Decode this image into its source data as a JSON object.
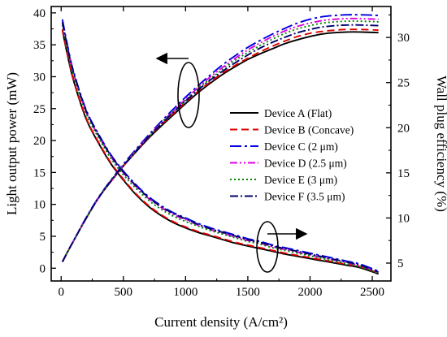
{
  "chart_data": {
    "type": "line",
    "xlabel": "Current density (A/cm²)",
    "ylabel_left": "Light output power (mW)",
    "ylabel_right": "Wall plug efficiency (%)",
    "xlim": [
      -80,
      2650
    ],
    "ylim_left": [
      -2,
      41
    ],
    "ylim_right": [
      3.02,
      33.43
    ],
    "xticks": [
      0,
      500,
      1000,
      1500,
      2000,
      2500
    ],
    "yticks_left": [
      0,
      5,
      10,
      15,
      20,
      25,
      30,
      35,
      40
    ],
    "yticks_right": [
      5,
      10,
      15,
      20,
      25,
      30
    ],
    "grid": false,
    "legend_position": "center-right",
    "x": [
      10,
      50,
      100,
      200,
      300,
      400,
      500,
      600,
      700,
      800,
      900,
      1000,
      1100,
      1200,
      1300,
      1400,
      1500,
      1600,
      1700,
      1800,
      1900,
      2000,
      2100,
      2200,
      2300,
      2400,
      2550
    ],
    "series": [
      {
        "name": "Device A (Flat)",
        "color": "#000000",
        "dash": "",
        "power": [
          1.0,
          2.5,
          4.3,
          7.8,
          11.0,
          13.6,
          16.0,
          18.2,
          20.3,
          22.2,
          24.0,
          25.8,
          27.5,
          29.0,
          30.4,
          31.6,
          32.7,
          33.6,
          34.4,
          35.2,
          35.8,
          36.3,
          36.7,
          36.9,
          37.0,
          37.0,
          36.9
        ],
        "efficiency": [
          30.8,
          28.1,
          25.2,
          21.0,
          18.3,
          16.0,
          14.2,
          12.6,
          11.3,
          10.3,
          9.5,
          8.9,
          8.4,
          8.0,
          7.6,
          7.2,
          6.9,
          6.6,
          6.3,
          6.0,
          5.75,
          5.5,
          5.25,
          5.0,
          4.75,
          4.5,
          3.8
        ]
      },
      {
        "name": "Device B (Concave)",
        "color": "#e00000",
        "dash": "9,5",
        "power": [
          1.0,
          2.5,
          4.3,
          7.8,
          11.0,
          13.6,
          16.0,
          18.3,
          20.4,
          22.4,
          24.2,
          26.0,
          27.7,
          29.2,
          30.6,
          31.8,
          32.9,
          33.9,
          34.8,
          35.6,
          36.3,
          36.8,
          37.1,
          37.3,
          37.4,
          37.4,
          37.3
        ],
        "efficiency": [
          30.9,
          28.2,
          25.3,
          21.1,
          18.4,
          16.1,
          14.3,
          12.7,
          11.4,
          10.4,
          9.6,
          9.0,
          8.5,
          8.1,
          7.7,
          7.3,
          7.0,
          6.7,
          6.4,
          6.1,
          5.85,
          5.6,
          5.35,
          5.1,
          4.85,
          4.6,
          3.9
        ]
      },
      {
        "name": "Device C (2 μm)",
        "color": "#0000e0",
        "dash": "14,4,3,4",
        "power": [
          1.0,
          2.5,
          4.3,
          7.9,
          11.1,
          13.8,
          16.3,
          18.6,
          20.8,
          22.9,
          24.9,
          26.8,
          28.6,
          30.3,
          31.9,
          33.3,
          34.6,
          35.7,
          36.7,
          37.6,
          38.4,
          39.0,
          39.4,
          39.6,
          39.7,
          39.7,
          39.6
        ],
        "efficiency": [
          32.0,
          29.2,
          26.2,
          22.0,
          19.3,
          17.0,
          15.2,
          13.7,
          12.4,
          11.4,
          10.6,
          10.0,
          9.4,
          8.9,
          8.5,
          8.1,
          7.7,
          7.4,
          7.0,
          6.7,
          6.4,
          6.1,
          5.8,
          5.5,
          5.2,
          4.9,
          4.1
        ]
      },
      {
        "name": "Device D (2.5 μm)",
        "color": "#e000e0",
        "dash": "9,3,2,3,2,3",
        "power": [
          1.0,
          2.5,
          4.3,
          7.8,
          11.0,
          13.7,
          16.1,
          18.4,
          20.6,
          22.7,
          24.6,
          26.5,
          28.3,
          30.0,
          31.5,
          32.9,
          34.2,
          35.3,
          36.3,
          37.2,
          37.9,
          38.4,
          38.8,
          39.0,
          39.1,
          39.1,
          39.0
        ],
        "efficiency": [
          31.6,
          28.9,
          26.0,
          21.8,
          19.1,
          16.8,
          15.0,
          13.5,
          12.2,
          11.2,
          10.4,
          9.8,
          9.2,
          8.7,
          8.3,
          7.9,
          7.5,
          7.2,
          6.8,
          6.5,
          6.2,
          5.9,
          5.6,
          5.3,
          5.0,
          4.7,
          3.95
        ]
      },
      {
        "name": "Device E (3 μm)",
        "color": "#008800",
        "dash": "2,3",
        "power": [
          1.0,
          2.5,
          4.3,
          7.8,
          11.0,
          13.7,
          16.1,
          18.4,
          20.5,
          22.6,
          24.5,
          26.3,
          28.1,
          29.7,
          31.2,
          32.6,
          33.8,
          34.9,
          35.9,
          36.8,
          37.5,
          38.0,
          38.4,
          38.6,
          38.7,
          38.7,
          38.6
        ],
        "efficiency": [
          31.4,
          28.7,
          25.8,
          21.6,
          18.9,
          16.6,
          14.8,
          13.3,
          12.0,
          11.0,
          10.2,
          9.6,
          9.1,
          8.6,
          8.2,
          7.8,
          7.4,
          7.1,
          6.7,
          6.4,
          6.1,
          5.8,
          5.5,
          5.2,
          4.9,
          4.6,
          3.9
        ]
      },
      {
        "name": "Device F (3.5 μm)",
        "color": "#00006e",
        "dash": "10,3,2,3",
        "power": [
          1.0,
          2.5,
          4.3,
          7.8,
          11.0,
          13.7,
          16.1,
          18.3,
          20.5,
          22.5,
          24.4,
          26.2,
          27.9,
          29.5,
          30.9,
          32.2,
          33.4,
          34.5,
          35.4,
          36.2,
          36.9,
          37.4,
          37.8,
          38.0,
          38.1,
          38.1,
          38.0
        ],
        "efficiency": [
          31.7,
          29.0,
          26.1,
          21.9,
          19.2,
          16.9,
          15.1,
          13.6,
          12.3,
          11.3,
          10.5,
          9.9,
          9.3,
          8.8,
          8.4,
          8.0,
          7.6,
          7.3,
          6.9,
          6.6,
          6.3,
          6.0,
          5.7,
          5.4,
          5.1,
          4.8,
          4.0
        ]
      }
    ]
  }
}
